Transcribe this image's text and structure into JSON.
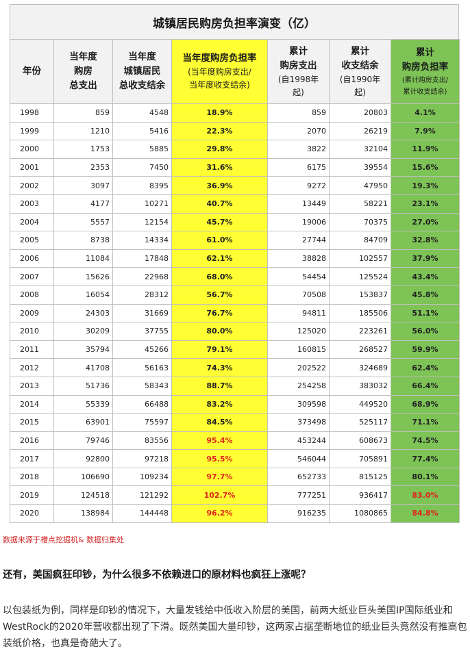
{
  "table": {
    "title": "城镇居民购房负担率演变（亿）",
    "headers": {
      "year": "年份",
      "spend_lines": [
        "当年度",
        "购房",
        "总支出"
      ],
      "balance_lines": [
        "当年度",
        "城镇居民",
        "总收支结余"
      ],
      "ratio_lines": [
        "当年度购房负担率"
      ],
      "ratio_sub_lines": [
        "(当年度购房支出/",
        "当年度收支结余)"
      ],
      "cum_spend_lines": [
        "累计",
        "购房支出"
      ],
      "cum_spend_sub_lines": [
        "(自1998年",
        "起)"
      ],
      "cum_balance_lines": [
        "累计",
        "收支结余"
      ],
      "cum_balance_sub_lines": [
        "(自1990年",
        "起)"
      ],
      "cum_ratio_lines": [
        "累计",
        "购房负担率"
      ],
      "cum_ratio_sub_lines": [
        "(累计购房支出/",
        "累计收支结余)"
      ]
    },
    "rows": [
      {
        "year": "1998",
        "spend": "859",
        "balance": "4548",
        "ratio": "18.9%",
        "cum_spend": "859",
        "cum_balance": "20803",
        "cum_ratio": "4.1%"
      },
      {
        "year": "1999",
        "spend": "1210",
        "balance": "5416",
        "ratio": "22.3%",
        "cum_spend": "2070",
        "cum_balance": "26219",
        "cum_ratio": "7.9%"
      },
      {
        "year": "2000",
        "spend": "1753",
        "balance": "5885",
        "ratio": "29.8%",
        "cum_spend": "3822",
        "cum_balance": "32104",
        "cum_ratio": "11.9%"
      },
      {
        "year": "2001",
        "spend": "2353",
        "balance": "7450",
        "ratio": "31.6%",
        "cum_spend": "6175",
        "cum_balance": "39554",
        "cum_ratio": "15.6%"
      },
      {
        "year": "2002",
        "spend": "3097",
        "balance": "8395",
        "ratio": "36.9%",
        "cum_spend": "9272",
        "cum_balance": "47950",
        "cum_ratio": "19.3%"
      },
      {
        "year": "2003",
        "spend": "4177",
        "balance": "10271",
        "ratio": "40.7%",
        "cum_spend": "13449",
        "cum_balance": "58221",
        "cum_ratio": "23.1%"
      },
      {
        "year": "2004",
        "spend": "5557",
        "balance": "12154",
        "ratio": "45.7%",
        "cum_spend": "19006",
        "cum_balance": "70375",
        "cum_ratio": "27.0%"
      },
      {
        "year": "2005",
        "spend": "8738",
        "balance": "14334",
        "ratio": "61.0%",
        "cum_spend": "27744",
        "cum_balance": "84709",
        "cum_ratio": "32.8%"
      },
      {
        "year": "2006",
        "spend": "11084",
        "balance": "17848",
        "ratio": "62.1%",
        "cum_spend": "38828",
        "cum_balance": "102557",
        "cum_ratio": "37.9%"
      },
      {
        "year": "2007",
        "spend": "15626",
        "balance": "22968",
        "ratio": "68.0%",
        "cum_spend": "54454",
        "cum_balance": "125524",
        "cum_ratio": "43.4%"
      },
      {
        "year": "2008",
        "spend": "16054",
        "balance": "28312",
        "ratio": "56.7%",
        "cum_spend": "70508",
        "cum_balance": "153837",
        "cum_ratio": "45.8%"
      },
      {
        "year": "2009",
        "spend": "24303",
        "balance": "31669",
        "ratio": "76.7%",
        "cum_spend": "94811",
        "cum_balance": "185506",
        "cum_ratio": "51.1%"
      },
      {
        "year": "2010",
        "spend": "30209",
        "balance": "37755",
        "ratio": "80.0%",
        "cum_spend": "125020",
        "cum_balance": "223261",
        "cum_ratio": "56.0%"
      },
      {
        "year": "2011",
        "spend": "35794",
        "balance": "45266",
        "ratio": "79.1%",
        "cum_spend": "160815",
        "cum_balance": "268527",
        "cum_ratio": "59.9%"
      },
      {
        "year": "2012",
        "spend": "41708",
        "balance": "56163",
        "ratio": "74.3%",
        "cum_spend": "202522",
        "cum_balance": "324689",
        "cum_ratio": "62.4%"
      },
      {
        "year": "2013",
        "spend": "51736",
        "balance": "58343",
        "ratio": "88.7%",
        "cum_spend": "254258",
        "cum_balance": "383032",
        "cum_ratio": "66.4%"
      },
      {
        "year": "2014",
        "spend": "55339",
        "balance": "66488",
        "ratio": "83.2%",
        "cum_spend": "309598",
        "cum_balance": "449520",
        "cum_ratio": "68.9%"
      },
      {
        "year": "2015",
        "spend": "63901",
        "balance": "75597",
        "ratio": "84.5%",
        "cum_spend": "373498",
        "cum_balance": "525117",
        "cum_ratio": "71.1%"
      },
      {
        "year": "2016",
        "spend": "79746",
        "balance": "83556",
        "ratio": "95.4%",
        "cum_spend": "453244",
        "cum_balance": "608673",
        "cum_ratio": "74.5%",
        "ratio_red": true
      },
      {
        "year": "2017",
        "spend": "92800",
        "balance": "97218",
        "ratio": "95.5%",
        "cum_spend": "546044",
        "cum_balance": "705891",
        "cum_ratio": "77.4%",
        "ratio_red": true
      },
      {
        "year": "2018",
        "spend": "106690",
        "balance": "109234",
        "ratio": "97.7%",
        "cum_spend": "652733",
        "cum_balance": "815125",
        "cum_ratio": "80.1%",
        "ratio_red": true
      },
      {
        "year": "2019",
        "spend": "124518",
        "balance": "121292",
        "ratio": "102.7%",
        "cum_spend": "777251",
        "cum_balance": "936417",
        "cum_ratio": "83.0%",
        "ratio_red": true,
        "cum_red": true
      },
      {
        "year": "2020",
        "spend": "138984",
        "balance": "144448",
        "ratio": "96.2%",
        "cum_spend": "916235",
        "cum_balance": "1080865",
        "cum_ratio": "84.8%",
        "ratio_red": true,
        "cum_red": true
      }
    ]
  },
  "source_note": "数据来源于槽点挖掘机& 数据归集处",
  "question": "还有，美国疯狂印钞，为什么很多不依赖进口的原材料也疯狂上涨呢？",
  "paragraph": "以包装纸为例，同样是印钞的情况下，大量发钱给中低收入阶层的美国，前两大纸业巨头美国IP国际纸业和WestRock的2020年营收都出现了下滑。既然美国大量印钞，这两家占据垄断地位的纸业巨头竟然没有推高包装纸价格，也真是奇葩大了。",
  "colors": {
    "highlight_yellow": "#ffff33",
    "highlight_green": "#7dc356",
    "warning_red": "#e0241b"
  }
}
